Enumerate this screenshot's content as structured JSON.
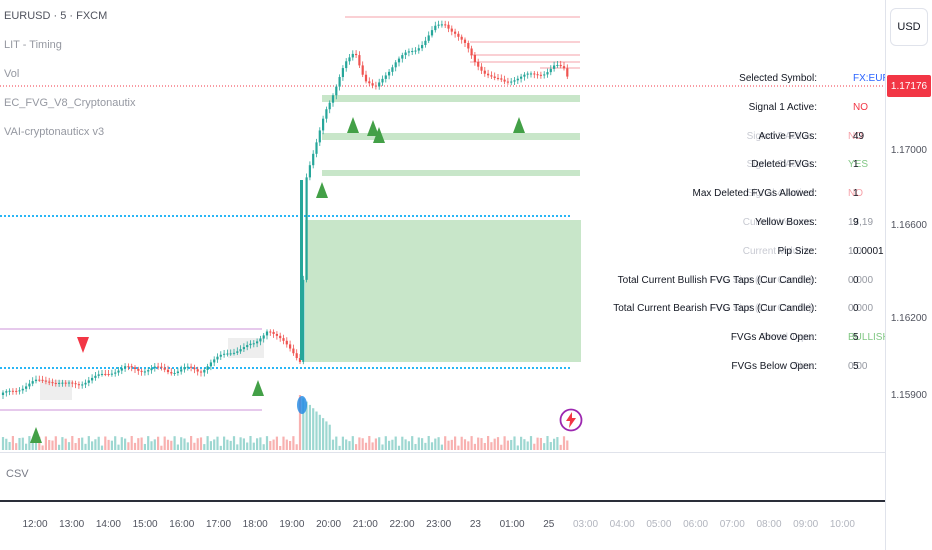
{
  "chart": {
    "header": "EURUSD · 5 · FXCM",
    "currency": "USD",
    "indicators": [
      "LIT - Timing",
      "Vol",
      "EC_FVG_V8_Cryptonautix",
      "VAI-cryptonauticx v3"
    ],
    "current_price": "1.17176",
    "price_labels": [
      "1.17000",
      "1.16600",
      "1.16200",
      "1.15900"
    ],
    "time_labels": [
      "12:00",
      "13:00",
      "14:00",
      "15:00",
      "16:00",
      "17:00",
      "18:00",
      "19:00",
      "20:00",
      "21:00",
      "22:00",
      "23:00",
      "23",
      "01:00",
      "25",
      "03:00",
      "04:00",
      "05:00",
      "06:00",
      "07:00",
      "08:00",
      "09:00",
      "10:00"
    ],
    "future_time_labels": [
      "03:00",
      "04:00",
      "05:00",
      "06:00",
      "07:00",
      "08:00",
      "09:00",
      "10:00"
    ],
    "subpane_label": "CSV",
    "colors": {
      "bull": "#26a69a",
      "bear": "#ef5350",
      "fvg": "#c8e6c9",
      "arrow_up": "#43a047",
      "arrow_down": "#f23645",
      "dots": "#29b6f6",
      "level": "#ce93d8",
      "price_line": "#f23645"
    }
  },
  "info_table": [
    {
      "label": "Selected Symbol:",
      "value": "FX:EURUSD",
      "ghost_label": "",
      "ghost_value": "",
      "value_color": "#2962ff"
    },
    {
      "label": "Signal 1 Active:",
      "value": "NO",
      "ghost_label": "",
      "ghost_value": "",
      "value_color": "#f23645"
    },
    {
      "label": "Active FVGs:",
      "value": "49",
      "ghost_label": "Signal 2 Active:",
      "ghost_value": "NO",
      "value_color": "#131722",
      "ghost_color": "#f6a1a8"
    },
    {
      "label": "Deleted FVGs:",
      "value": "1",
      "ghost_label": "Signal 3 Active:",
      "ghost_value": "YES",
      "value_color": "#131722",
      "ghost_color": "#81c784"
    },
    {
      "label": "Max Deleted FVGs Allowed:",
      "value": "1",
      "ghost_label": "Signal 4 Active:",
      "ghost_value": "NO",
      "value_color": "#131722",
      "ghost_color": "#f6a1a8"
    },
    {
      "label": "Yellow Boxes:",
      "value": "9",
      "ghost_label": "Current Volume:",
      "ghost_value": "13,19",
      "value_color": "#131722",
      "ghost_color": "#9598a1"
    },
    {
      "label": "Pip Size:",
      "value": "0.0001",
      "ghost_label": "Current Volume:",
      "ghost_value": "1.0",
      "value_color": "#131722",
      "ghost_color": "#9598a1"
    },
    {
      "label": "Total Current Bullish FVG Taps (Cur Candle):",
      "value": "0",
      "ghost_label": "FVG Size (Cur Candle):",
      "ghost_value": "0.000",
      "value_color": "#131722",
      "ghost_color": "#9598a1"
    },
    {
      "label": "Total Current Bearish FVG Taps (Cur Candle):",
      "value": "0",
      "ghost_label": "FVG Size (Cur Candle):",
      "ghost_value": "0.000",
      "value_color": "#131722",
      "ghost_color": "#9598a1"
    },
    {
      "label": "FVGs Above Open:",
      "value": "5",
      "ghost_label": "Trend Type:",
      "ghost_value": "BULLISH",
      "value_color": "#131722",
      "ghost_color": "#81c784"
    },
    {
      "label": "FVGs Below Open:",
      "value": "5",
      "ghost_label": "Size:",
      "ghost_value": "0.00",
      "value_color": "#131722",
      "ghost_color": "#9598a1"
    }
  ]
}
